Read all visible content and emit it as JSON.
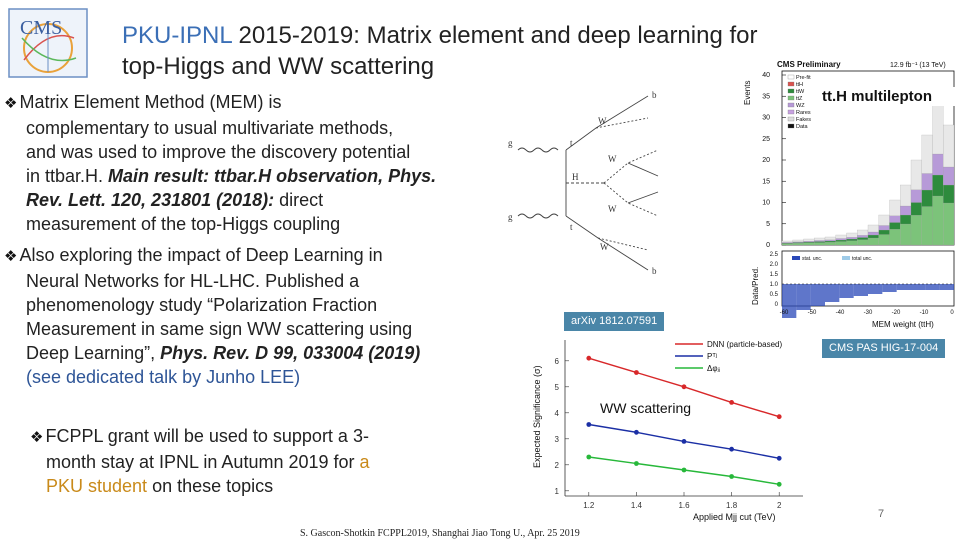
{
  "title": {
    "org": "PKU-IPNL",
    "rest_line1": " 2015-2019: Matrix element and deep learning for",
    "line2": "top-Higgs and WW scattering"
  },
  "logo": {
    "text": "CMS"
  },
  "bullets": {
    "mem": {
      "line1": "Matrix Element Method (MEM)  is",
      "line2": "complementary to usual multivariate methods,",
      "line3": "and was used to improve the discovery potential",
      "line4a": "in ttbar.H. ",
      "line4b": "Main result: ttbar.H observation, Phys.",
      "line5a": "Rev. Lett. 120, 231801 (2018):",
      "line5b": " direct",
      "line6": "measurement of the top-Higgs coupling"
    },
    "dl": {
      "line1": "Also exploring the impact of Deep Learning in",
      "line2": "Neural Networks for HL-LHC. Published a",
      "line3": "phenomenology study “Polarization Fraction",
      "line4": "Measurement in same sign WW scattering using",
      "line5a": "Deep Learning”, ",
      "line5b": "Phys. Rev. D 99, 033004 (2019)",
      "line6": "(see dedicated talk by Junho LEE)"
    },
    "fcppl": {
      "line1": "FCPPL grant will be used to support a 3-",
      "line2a": "month stay at IPNL in Autumn 2019 for ",
      "line2b": "a",
      "line3a": "PKU student",
      "line3b": " on these topics"
    }
  },
  "tags": {
    "arxiv": "arXiv 1812.07591",
    "cms": "CMS PAS HIG-17-004"
  },
  "tth_plot": {
    "header_left": "CMS Preliminary",
    "header_right": "12.9 fb⁻¹ (13 TeV)",
    "label": "tt.H multilepton",
    "ylabel": "Events",
    "ratio_ylabel": "Data/Pred.",
    "xlabel": "MEM weight (ttH)",
    "y_ticks": [
      "0",
      "5",
      "10",
      "15",
      "20",
      "25",
      "30",
      "35",
      "40"
    ],
    "ratio_ticks": [
      "0",
      "0.5",
      "1.0",
      "1.5",
      "2.0",
      "2.5"
    ],
    "x_ticks": [
      "-60",
      "-50",
      "-40",
      "-30",
      "-20",
      "-10",
      "0"
    ],
    "legend": [
      "Pre-fit",
      "ttH",
      "ttW",
      "ttZ",
      "WZ",
      "Rares",
      "Fakes",
      "Data"
    ],
    "ratio_legend": [
      "stat. unc.",
      "total unc."
    ]
  },
  "ww_plot": {
    "label": "WW scattering",
    "ylabel": "Expected Significance (σ)",
    "xlabel": "Applied Mjj cut (TeV)",
    "y_ticks": [
      "1",
      "2",
      "3",
      "4",
      "5",
      "6"
    ],
    "x_ticks": [
      "1.2",
      "1.4",
      "1.6",
      "1.8",
      "2"
    ],
    "legend": [
      "DNN (particle-based)",
      "Pᵀʲ",
      "Δφⱼⱼ"
    ]
  },
  "chart_data": [
    {
      "type": "line",
      "title": "",
      "xlabel": "Applied Mjj cut (TeV)",
      "ylabel": "Expected Significance (σ)",
      "ylim": [
        0.8,
        6.8
      ],
      "xlim": [
        1.1,
        2.1
      ],
      "x": [
        1.2,
        1.4,
        1.6,
        1.8,
        2.0
      ],
      "series": [
        {
          "name": "DNN (particle-based)",
          "color": "#d8282a",
          "values": [
            6.1,
            5.55,
            5.0,
            4.4,
            3.85
          ]
        },
        {
          "name": "Pᵀʲ",
          "color": "#1b2fa5",
          "values": [
            3.55,
            3.25,
            2.9,
            2.6,
            2.25
          ]
        },
        {
          "name": "Δφⱼⱼ",
          "color": "#27b83a",
          "values": [
            2.3,
            2.05,
            1.8,
            1.55,
            1.25
          ]
        }
      ]
    }
  ],
  "footer": "S. Gascon-Shotkin FCPPL2019, Shanghai Jiao Tong U., Apr. 25 2019",
  "page_number": "7",
  "colors": {
    "title_org": "#3b6fb6",
    "tag_bg": "#4a86a8",
    "highlight": "#c98a1a"
  }
}
